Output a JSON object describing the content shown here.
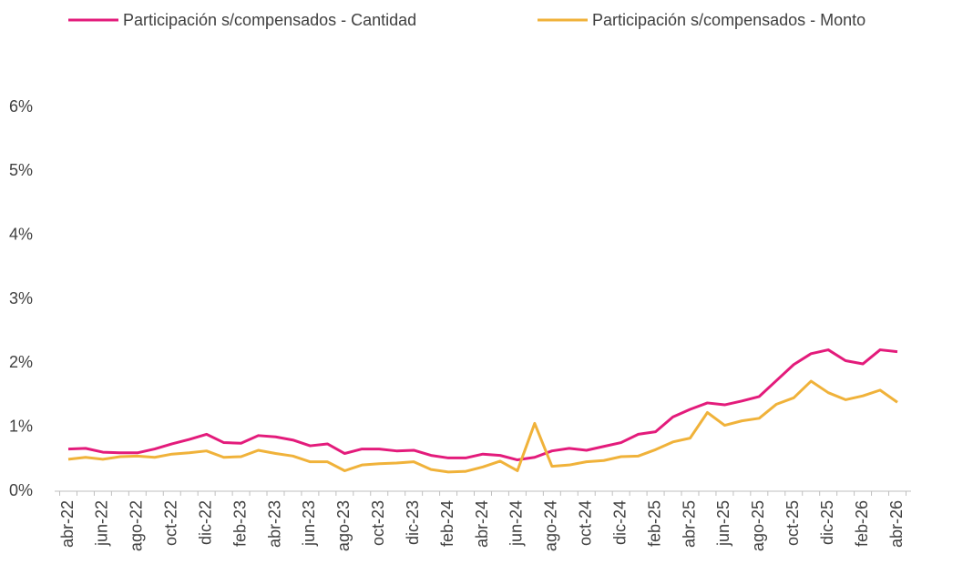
{
  "chart_data": {
    "type": "line",
    "categories": [
      "abr-22",
      null,
      "jun-22",
      null,
      "ago-22",
      null,
      "oct-22",
      null,
      "dic-22",
      null,
      "feb-23",
      null,
      "abr-23",
      null,
      "jun-23",
      null,
      "ago-23",
      null,
      "oct-23",
      null,
      "dic-23",
      null,
      "feb-24",
      null,
      "abr-24",
      null,
      "jun-24",
      null,
      "ago-24",
      null,
      "oct-24",
      null,
      "dic-24",
      null,
      "feb-25",
      null,
      "abr-25",
      null,
      "jun-25",
      null,
      "ago-25",
      null,
      "oct-25",
      null,
      "dic-25",
      null,
      "feb-26",
      null,
      "abr-26"
    ],
    "series": [
      {
        "name": "Participación s/compensados - Cantidad",
        "color": "#e31b7b",
        "values": [
          0.66,
          0.67,
          0.61,
          0.6,
          0.6,
          0.66,
          0.74,
          0.81,
          0.89,
          0.76,
          0.75,
          0.87,
          0.85,
          0.8,
          0.71,
          0.74,
          0.59,
          0.66,
          0.66,
          0.63,
          0.64,
          0.56,
          0.52,
          0.52,
          0.58,
          0.56,
          0.49,
          0.53,
          0.63,
          0.67,
          0.64,
          0.7,
          0.76,
          0.89,
          0.93,
          1.16,
          1.28,
          1.38,
          1.35,
          1.41,
          1.48,
          1.73,
          1.98,
          2.15,
          2.21,
          2.04,
          1.99,
          2.21,
          2.18
        ]
      },
      {
        "name": "Participación s/compensados - Monto",
        "color": "#f0b23a",
        "values": [
          0.5,
          0.53,
          0.5,
          0.54,
          0.55,
          0.53,
          0.58,
          0.6,
          0.63,
          0.53,
          0.54,
          0.64,
          0.59,
          0.55,
          0.46,
          0.46,
          0.32,
          0.41,
          0.43,
          0.44,
          0.46,
          0.34,
          0.3,
          0.31,
          0.38,
          0.47,
          0.32,
          1.06,
          0.39,
          0.41,
          0.46,
          0.48,
          0.54,
          0.55,
          0.65,
          0.77,
          0.83,
          1.23,
          1.03,
          1.1,
          1.14,
          1.36,
          1.46,
          1.72,
          1.54,
          1.43,
          1.49,
          1.58,
          1.39
        ]
      }
    ],
    "ylim": [
      0,
      6
    ],
    "yticks": [
      {
        "value": 0,
        "label": "0%"
      },
      {
        "value": 1,
        "label": "1%"
      },
      {
        "value": 2,
        "label": "2%"
      },
      {
        "value": 3,
        "label": "3%"
      },
      {
        "value": 4,
        "label": "4%"
      },
      {
        "value": 5,
        "label": "5%"
      },
      {
        "value": 6,
        "label": "6%"
      }
    ],
    "legend": "top"
  }
}
